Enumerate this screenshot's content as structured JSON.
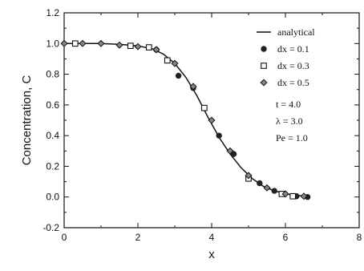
{
  "chart_data": {
    "type": "line",
    "title": "",
    "xlabel": "x",
    "ylabel": "Concentration, C",
    "xlim": [
      0,
      8
    ],
    "ylim": [
      -0.2,
      1.2
    ],
    "x_ticks": [
      "0",
      "2",
      "4",
      "6",
      "8"
    ],
    "y_ticks": [
      "-0.2",
      "0.0",
      "0.2",
      "0.4",
      "0.6",
      "0.8",
      "1.0",
      "1.2"
    ],
    "grid": false,
    "legend_position": "top-right",
    "series": [
      {
        "name": "analytical",
        "marker": "line",
        "x": [
          0.0,
          0.5,
          1.0,
          1.5,
          2.0,
          2.4,
          2.7,
          3.0,
          3.3,
          3.6,
          3.9,
          4.2,
          4.5,
          4.8,
          5.1,
          5.4,
          5.7,
          6.0,
          6.3,
          6.6
        ],
        "y": [
          1.0,
          1.0,
          1.0,
          0.995,
          0.985,
          0.965,
          0.93,
          0.87,
          0.78,
          0.66,
          0.52,
          0.39,
          0.28,
          0.19,
          0.12,
          0.07,
          0.04,
          0.02,
          0.01,
          0.005
        ]
      },
      {
        "name": "dx = 0.1",
        "marker": "filled-circle",
        "x": [
          2.5,
          3.1,
          3.5,
          4.2,
          4.6,
          5.3,
          5.7,
          6.3,
          6.6
        ],
        "y": [
          0.96,
          0.79,
          0.71,
          0.4,
          0.28,
          0.09,
          0.04,
          0.005,
          0.0
        ]
      },
      {
        "name": "dx = 0.3",
        "marker": "open-square",
        "x": [
          0.3,
          1.8,
          2.3,
          2.8,
          3.8,
          5.0,
          5.9,
          6.2
        ],
        "y": [
          1.0,
          0.985,
          0.975,
          0.89,
          0.58,
          0.12,
          0.02,
          0.005
        ]
      },
      {
        "name": "dx = 0.5",
        "marker": "open-diamond",
        "x": [
          0.0,
          0.5,
          1.0,
          1.5,
          2.0,
          2.5,
          3.0,
          3.5,
          4.0,
          4.5,
          5.0,
          5.5,
          6.0,
          6.5
        ],
        "y": [
          1.0,
          1.0,
          1.0,
          0.99,
          0.98,
          0.96,
          0.87,
          0.72,
          0.5,
          0.3,
          0.14,
          0.06,
          0.02,
          0.005
        ]
      }
    ],
    "parameters": [
      "t = 4.0",
      "λ = 3.0",
      "Pe = 1.0"
    ]
  }
}
